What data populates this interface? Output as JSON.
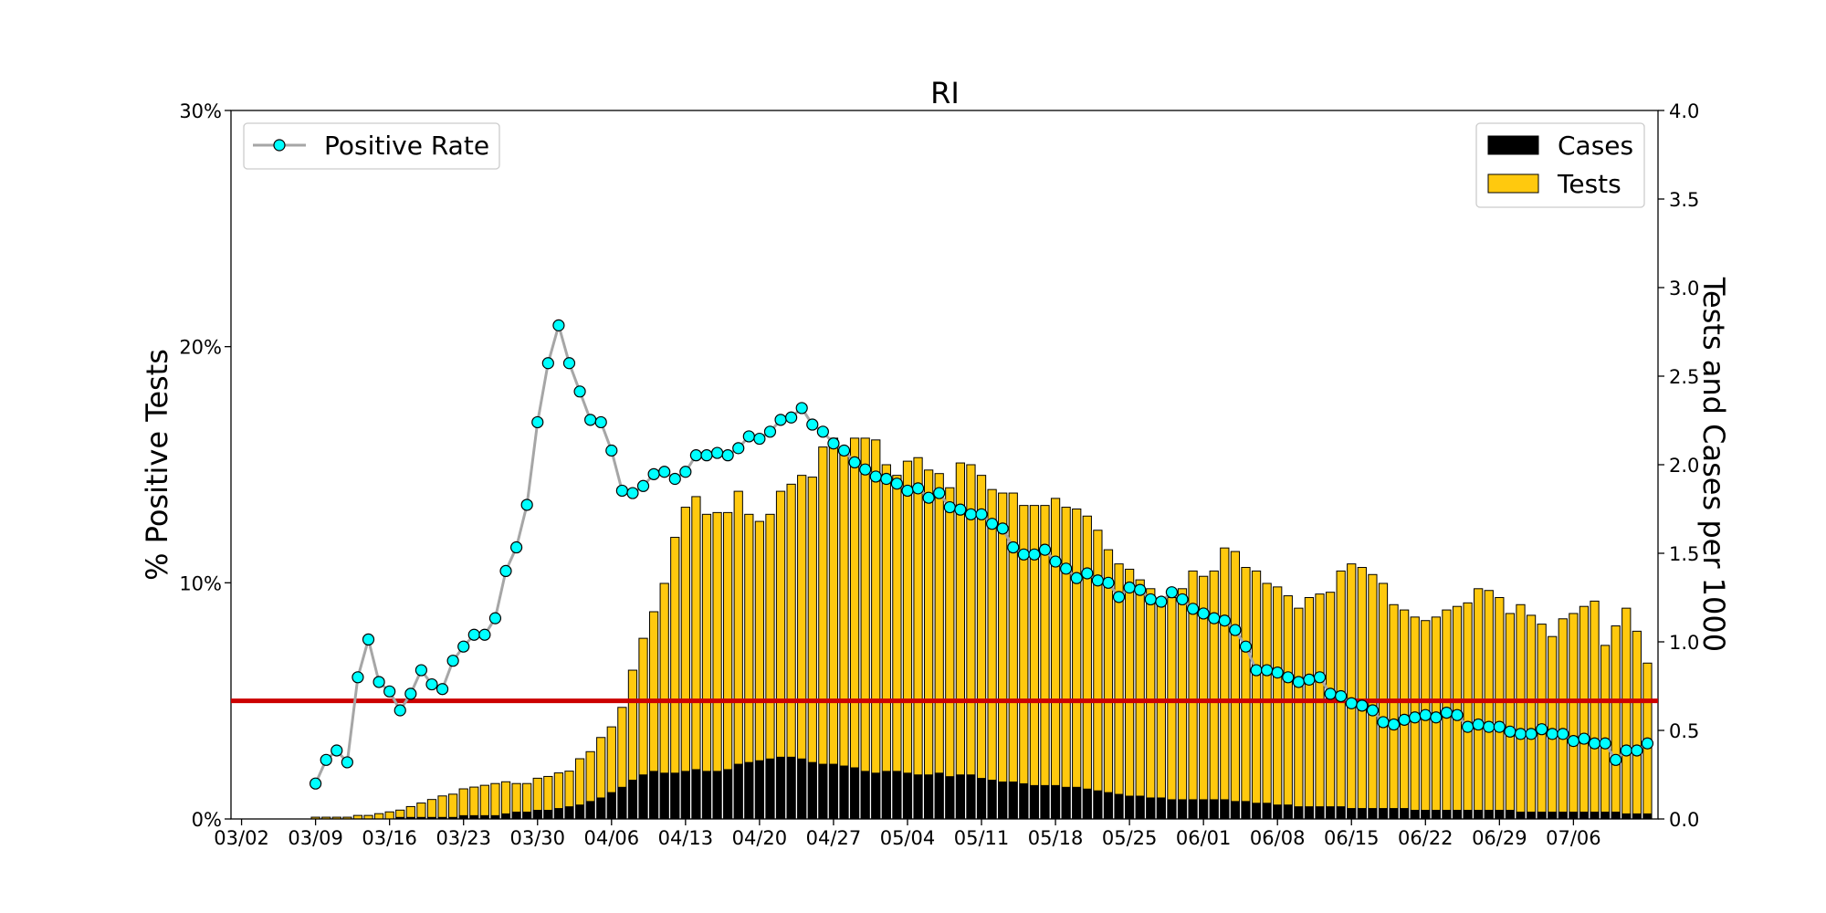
{
  "chart_data": {
    "type": "bar",
    "title": "RI",
    "ylabel_left": "% Positive Tests",
    "ylabel_right": "Tests and Cases per 1000",
    "ylim_left": [
      0,
      30
    ],
    "ylim_right": [
      0,
      4.0
    ],
    "yticks_left": [
      "0%",
      "10%",
      "20%",
      "30%"
    ],
    "yticks_right": [
      "0.0",
      "0.5",
      "1.0",
      "1.5",
      "2.0",
      "2.5",
      "3.0",
      "3.5",
      "4.0"
    ],
    "x_tick_labels": [
      "03/02",
      "03/09",
      "03/16",
      "03/23",
      "03/30",
      "04/06",
      "04/13",
      "04/20",
      "04/27",
      "05/04",
      "05/11",
      "05/18",
      "05/25",
      "06/01",
      "06/08",
      "06/15",
      "06/22",
      "06/29",
      "07/06"
    ],
    "x_tick_days": [
      0,
      7,
      14,
      21,
      28,
      35,
      42,
      49,
      56,
      63,
      70,
      77,
      84,
      91,
      98,
      105,
      112,
      119,
      126
    ],
    "x_range_days": [
      -1,
      134
    ],
    "first_bar_date": "03/08",
    "reference_line_pct": 5,
    "reference_line_color": "#cc0000",
    "legend_left": {
      "position": "upper-left",
      "entries": [
        "Positive Rate"
      ]
    },
    "legend_right": {
      "position": "upper-right",
      "entries": [
        "Cases",
        "Tests"
      ]
    },
    "colors": {
      "tests": "#ffc90e",
      "cases": "#000000",
      "line": "#a6a6a6",
      "marker": "#00ffff"
    },
    "series": [
      {
        "name": "Tests",
        "values": [
          0.0,
          0.01,
          0.01,
          0.01,
          0.01,
          0.02,
          0.02,
          0.03,
          0.04,
          0.05,
          0.07,
          0.09,
          0.11,
          0.13,
          0.14,
          0.17,
          0.18,
          0.19,
          0.2,
          0.21,
          0.2,
          0.2,
          0.23,
          0.24,
          0.26,
          0.27,
          0.34,
          0.38,
          0.46,
          0.52,
          0.63,
          0.84,
          1.02,
          1.17,
          1.33,
          1.59,
          1.76,
          1.82,
          1.72,
          1.73,
          1.73,
          1.85,
          1.72,
          1.68,
          1.72,
          1.85,
          1.89,
          1.94,
          1.93,
          2.1,
          2.15,
          2.08,
          2.15,
          2.15,
          2.14,
          2.0,
          1.94,
          2.02,
          2.04,
          1.97,
          1.95,
          1.87,
          2.01,
          2.0,
          1.94,
          1.86,
          1.84,
          1.84,
          1.77,
          1.77,
          1.77,
          1.81,
          1.76,
          1.75,
          1.71,
          1.63,
          1.52,
          1.44,
          1.41,
          1.35,
          1.3,
          1.23,
          1.25,
          1.3,
          1.4,
          1.37,
          1.4,
          1.53,
          1.51,
          1.42,
          1.4,
          1.33,
          1.31,
          1.26,
          1.19,
          1.25,
          1.27,
          1.28,
          1.4,
          1.44,
          1.42,
          1.38,
          1.33,
          1.21,
          1.18,
          1.14,
          1.12,
          1.14,
          1.18,
          1.2,
          1.22,
          1.3,
          1.29,
          1.25,
          1.16,
          1.21,
          1.15,
          1.1,
          1.03,
          1.13,
          1.16,
          1.2,
          1.23,
          0.98,
          1.09,
          1.19,
          1.06,
          0.88
        ],
        "start_day": 6
      },
      {
        "name": "Cases",
        "values": [
          0.0,
          0.0,
          0.0,
          0.0,
          0.0,
          0.0,
          0.0,
          0.0,
          0.0,
          0.01,
          0.01,
          0.01,
          0.01,
          0.01,
          0.01,
          0.02,
          0.02,
          0.02,
          0.02,
          0.03,
          0.04,
          0.04,
          0.05,
          0.05,
          0.06,
          0.07,
          0.08,
          0.1,
          0.12,
          0.15,
          0.18,
          0.22,
          0.25,
          0.27,
          0.26,
          0.26,
          0.27,
          0.28,
          0.27,
          0.27,
          0.28,
          0.31,
          0.32,
          0.33,
          0.34,
          0.35,
          0.35,
          0.34,
          0.32,
          0.31,
          0.31,
          0.3,
          0.29,
          0.27,
          0.26,
          0.27,
          0.27,
          0.26,
          0.25,
          0.25,
          0.26,
          0.24,
          0.25,
          0.25,
          0.23,
          0.22,
          0.21,
          0.21,
          0.2,
          0.19,
          0.19,
          0.19,
          0.18,
          0.18,
          0.17,
          0.16,
          0.15,
          0.14,
          0.13,
          0.13,
          0.12,
          0.12,
          0.11,
          0.11,
          0.11,
          0.11,
          0.11,
          0.11,
          0.1,
          0.1,
          0.09,
          0.09,
          0.08,
          0.08,
          0.07,
          0.07,
          0.07,
          0.07,
          0.07,
          0.06,
          0.06,
          0.06,
          0.06,
          0.06,
          0.06,
          0.05,
          0.05,
          0.05,
          0.05,
          0.05,
          0.05,
          0.05,
          0.05,
          0.05,
          0.05,
          0.04,
          0.04,
          0.04,
          0.04,
          0.04,
          0.04,
          0.04,
          0.04,
          0.04,
          0.04,
          0.03,
          0.03,
          0.03
        ],
        "start_day": 6
      },
      {
        "name": "Positive Rate",
        "values": [
          1.5,
          2.5,
          2.9,
          2.4,
          6.0,
          7.6,
          5.8,
          5.4,
          4.6,
          5.3,
          6.3,
          5.7,
          5.5,
          6.7,
          7.3,
          7.8,
          7.8,
          8.5,
          10.5,
          11.5,
          13.3,
          16.8,
          19.3,
          20.9,
          19.3,
          18.1,
          16.9,
          16.8,
          15.6,
          13.9,
          13.8,
          14.1,
          14.6,
          14.7,
          14.4,
          14.7,
          15.4,
          15.4,
          15.5,
          15.4,
          15.7,
          16.2,
          16.1,
          16.4,
          16.9,
          17.0,
          17.4,
          16.7,
          16.4,
          15.9,
          15.6,
          15.1,
          14.8,
          14.5,
          14.4,
          14.2,
          13.9,
          14.0,
          13.6,
          13.8,
          13.2,
          13.1,
          12.9,
          12.9,
          12.5,
          12.3,
          11.5,
          11.2,
          11.2,
          11.4,
          10.9,
          10.6,
          10.2,
          10.4,
          10.1,
          10.0,
          9.4,
          9.8,
          9.7,
          9.3,
          9.2,
          9.6,
          9.3,
          8.9,
          8.7,
          8.5,
          8.4,
          8.0,
          7.3,
          6.3,
          6.3,
          6.2,
          6.0,
          5.8,
          5.9,
          6.0,
          5.3,
          5.2,
          4.9,
          4.8,
          4.6,
          4.1,
          4.0,
          4.2,
          4.3,
          4.4,
          4.3,
          4.5,
          4.4,
          3.9,
          4.0,
          3.9,
          3.9,
          3.7,
          3.6,
          3.6,
          3.8,
          3.6,
          3.6,
          3.3,
          3.4,
          3.2,
          3.2,
          2.5,
          2.9,
          2.9,
          3.2
        ],
        "start_day": 7
      }
    ]
  }
}
